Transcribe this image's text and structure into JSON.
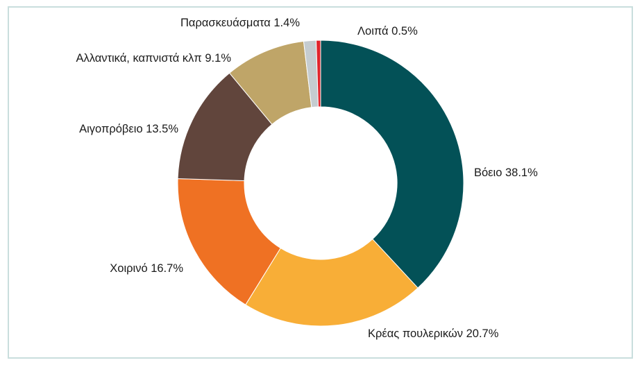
{
  "chart_data": {
    "type": "pie",
    "variant": "donut",
    "title": "",
    "legend": "none",
    "slices": [
      {
        "label": "Βόειο",
        "value": 38.1,
        "display": "Βόειο 38.1%",
        "color": "#035157"
      },
      {
        "label": "Κρέας πουλερικών",
        "value": 20.7,
        "display": "Κρέας πουλερικών 20.7%",
        "color": "#f8ae37"
      },
      {
        "label": "Χοιρινό",
        "value": 16.7,
        "display": "Χοιρινό 16.7%",
        "color": "#ef7123"
      },
      {
        "label": "Αιγοπρόβειο",
        "value": 13.5,
        "display": "Αιγοπρόβειο 13.5%",
        "color": "#61453c"
      },
      {
        "label": "Αλλαντικά, καπνιστά κλπ",
        "value": 9.1,
        "display": "Αλλαντικά, καπνιστά κλπ 9.1%",
        "color": "#bfa568"
      },
      {
        "label": "Παρασκευάσματα",
        "value": 1.4,
        "display": "Παρασκευάσματα 1.4%",
        "color": "#c5ccd0"
      },
      {
        "label": "Λοιπά",
        "value": 0.5,
        "display": "Λοιπά 0.5%",
        "color": "#e0242c"
      }
    ]
  }
}
